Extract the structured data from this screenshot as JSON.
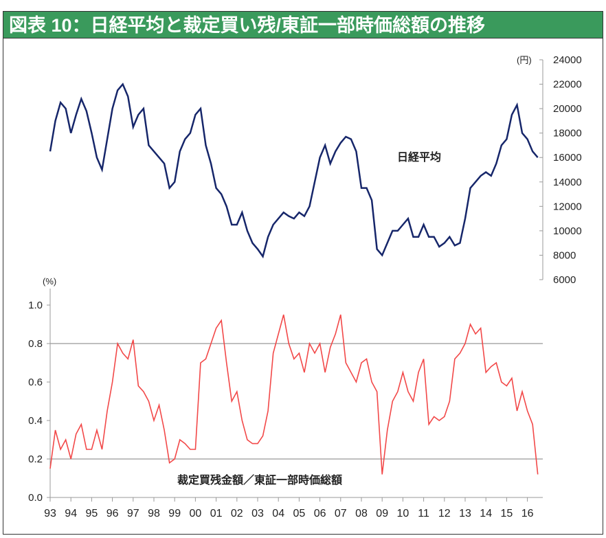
{
  "title": "図表 10：日経平均と裁定買い残/東証一部時価総額の推移",
  "chart_data": [
    {
      "type": "line",
      "series": [
        {
          "name": "日経平均",
          "color": "#16266a"
        }
      ],
      "ylabel": "(円)",
      "ylim": [
        6000,
        24000
      ],
      "yticks": [
        24000,
        22000,
        20000,
        18000,
        16000,
        14000,
        12000,
        10000,
        8000,
        6000
      ],
      "x": [
        1993,
        1993.25,
        1993.5,
        1993.75,
        1994,
        1994.25,
        1994.5,
        1994.75,
        1995,
        1995.25,
        1995.5,
        1995.75,
        1996,
        1996.25,
        1996.5,
        1996.75,
        1997,
        1997.25,
        1997.5,
        1997.75,
        1998,
        1998.25,
        1998.5,
        1998.75,
        1999,
        1999.25,
        1999.5,
        1999.75,
        2000,
        2000.25,
        2000.5,
        2000.75,
        2001,
        2001.25,
        2001.5,
        2001.75,
        2002,
        2002.25,
        2002.5,
        2002.75,
        2003,
        2003.25,
        2003.5,
        2003.75,
        2004,
        2004.25,
        2004.5,
        2004.75,
        2005,
        2005.25,
        2005.5,
        2005.75,
        2006,
        2006.25,
        2006.5,
        2006.75,
        2007,
        2007.25,
        2007.5,
        2007.75,
        2008,
        2008.25,
        2008.5,
        2008.75,
        2009,
        2009.25,
        2009.5,
        2009.75,
        2010,
        2010.25,
        2010.5,
        2010.75,
        2011,
        2011.25,
        2011.5,
        2011.75,
        2012,
        2012.25,
        2012.5,
        2012.75,
        2013,
        2013.25,
        2013.5,
        2013.75,
        2014,
        2014.25,
        2014.5,
        2014.75,
        2015,
        2015.25,
        2015.5,
        2015.75,
        2016,
        2016.25,
        2016.5
      ],
      "values": [
        16500,
        19000,
        20500,
        20000,
        18000,
        19500,
        20800,
        19800,
        18000,
        16000,
        15000,
        17500,
        20000,
        21500,
        22000,
        21000,
        18500,
        19500,
        20000,
        17000,
        16500,
        16000,
        15500,
        13500,
        14000,
        16500,
        17500,
        18000,
        19500,
        20000,
        17000,
        15500,
        13500,
        13000,
        12000,
        10500,
        10500,
        11500,
        10000,
        9000,
        8500,
        7900,
        9500,
        10500,
        11000,
        11500,
        11200,
        11000,
        11500,
        11200,
        12000,
        14000,
        16000,
        17000,
        15500,
        16500,
        17200,
        17700,
        17500,
        16500,
        13500,
        13500,
        12500,
        8500,
        8000,
        9000,
        10000,
        10000,
        10500,
        11000,
        9500,
        9500,
        10500,
        9500,
        9500,
        8700,
        9000,
        9500,
        8800,
        9000,
        11000,
        13500,
        14000,
        14500,
        14800,
        14500,
        15500,
        17000,
        17500,
        19500,
        20300,
        18000,
        17500,
        16500,
        16000
      ]
    },
    {
      "type": "line",
      "series": [
        {
          "name": "裁定買残金額／東証一部時価総額",
          "color": "#f24848"
        }
      ],
      "ylabel": "(%)",
      "ylim": [
        0,
        1.1
      ],
      "yticks": [
        "1.0",
        "0.8",
        "0.6",
        "0.4",
        "0.2",
        "0.0"
      ],
      "reference_lines": [
        0.8,
        0.2
      ],
      "xticks": [
        "93",
        "94",
        "95",
        "96",
        "97",
        "98",
        "99",
        "00",
        "01",
        "02",
        "03",
        "04",
        "05",
        "06",
        "07",
        "08",
        "09",
        "10",
        "11",
        "12",
        "13",
        "14",
        "15",
        "16"
      ],
      "values": [
        0.15,
        0.35,
        0.25,
        0.3,
        0.2,
        0.33,
        0.38,
        0.25,
        0.25,
        0.35,
        0.25,
        0.45,
        0.6,
        0.8,
        0.75,
        0.72,
        0.82,
        0.58,
        0.55,
        0.5,
        0.4,
        0.48,
        0.35,
        0.18,
        0.2,
        0.3,
        0.28,
        0.25,
        0.25,
        0.7,
        0.72,
        0.8,
        0.88,
        0.92,
        0.7,
        0.5,
        0.55,
        0.4,
        0.3,
        0.28,
        0.28,
        0.32,
        0.45,
        0.75,
        0.85,
        0.95,
        0.8,
        0.72,
        0.75,
        0.65,
        0.8,
        0.75,
        0.8,
        0.65,
        0.78,
        0.85,
        0.95,
        0.7,
        0.65,
        0.6,
        0.7,
        0.72,
        0.6,
        0.55,
        0.12,
        0.35,
        0.5,
        0.55,
        0.65,
        0.55,
        0.5,
        0.65,
        0.72,
        0.38,
        0.42,
        0.4,
        0.42,
        0.5,
        0.72,
        0.75,
        0.8,
        0.9,
        0.85,
        0.88,
        0.65,
        0.68,
        0.7,
        0.6,
        0.58,
        0.62,
        0.45,
        0.55,
        0.45,
        0.38,
        0.12
      ]
    }
  ]
}
